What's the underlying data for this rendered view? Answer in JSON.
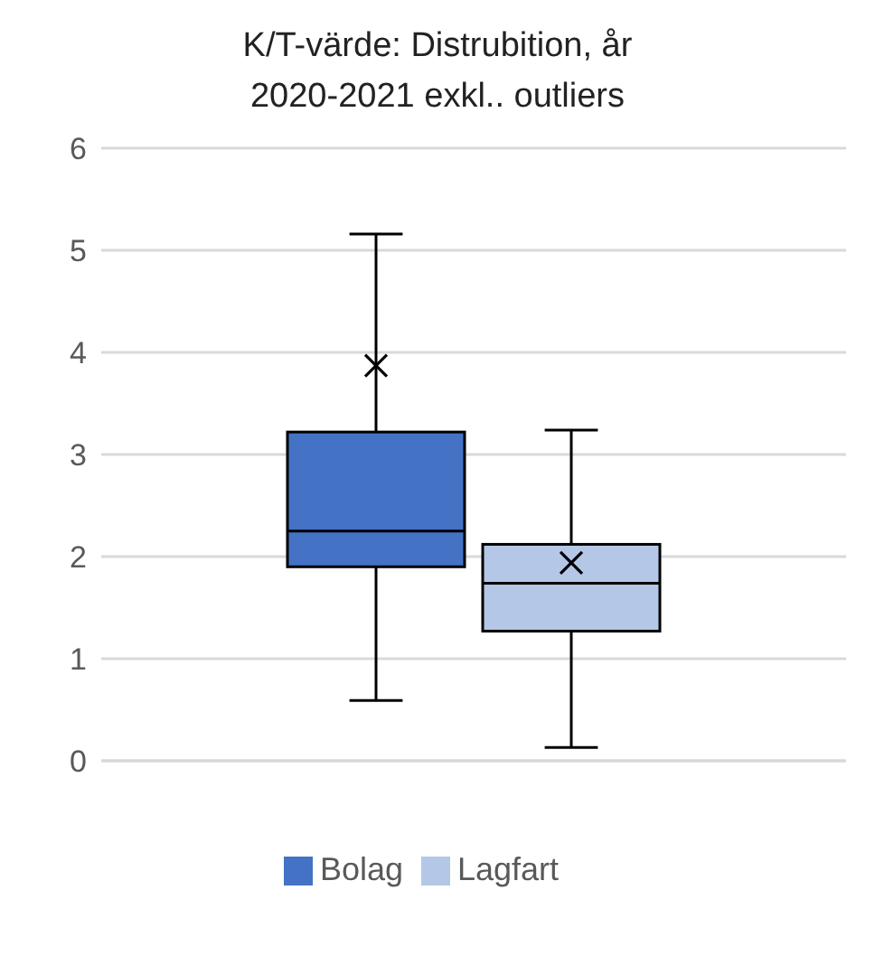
{
  "chart_data": {
    "type": "box",
    "title": "K/T-värde: Distrubition, år 2020-2021 exkl.. outliers",
    "categories": [
      null
    ],
    "series": [
      {
        "name": "Bolag",
        "color": "#4472c4",
        "boxes": [
          {
            "low": 0.59,
            "q1": 1.9,
            "median": 2.25,
            "q3": 3.22,
            "high": 5.16,
            "mean": 3.87
          }
        ]
      },
      {
        "name": "Lagfart",
        "color": "#b4c7e7",
        "boxes": [
          {
            "low": 0.13,
            "q1": 1.27,
            "median": 1.74,
            "q3": 2.12,
            "high": 3.24,
            "mean": 1.94
          }
        ]
      }
    ],
    "ylim": [
      0,
      6
    ],
    "yticks": [
      0,
      1,
      2,
      3,
      4,
      5,
      6
    ],
    "grid": "y",
    "legend": "bottom",
    "marker": "cross"
  }
}
